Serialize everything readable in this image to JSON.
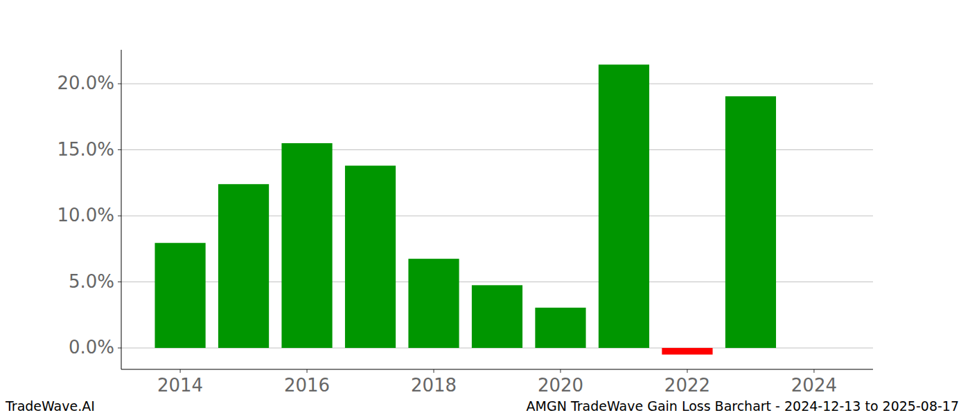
{
  "chart_data": {
    "type": "bar",
    "title": "AMGN TradeWave Gain Loss Barchart - 2024-12-13 to 2025-08-17",
    "annotations": [
      "TradeWave.AI"
    ],
    "x": [
      2014,
      2015,
      2016,
      2017,
      2018,
      2019,
      2020,
      2021,
      2022,
      2023
    ],
    "values": [
      7.95,
      12.4,
      15.5,
      13.8,
      6.75,
      4.75,
      3.05,
      21.45,
      -0.5,
      19.05
    ],
    "colors": [
      "#009600",
      "#009600",
      "#009600",
      "#009600",
      "#009600",
      "#009600",
      "#009600",
      "#009600",
      "#ff0000",
      "#009600"
    ],
    "xlim": [
      2013.07,
      2024.93
    ],
    "xticks": [
      2014,
      2016,
      2018,
      2020,
      2022,
      2024
    ],
    "ylim": [
      -1.62,
      22.57
    ],
    "yticks": [
      {
        "value": 0,
        "label": "0.0%"
      },
      {
        "value": 5,
        "label": "5.0%"
      },
      {
        "value": 10,
        "label": "10.0%"
      },
      {
        "value": 15,
        "label": "15.0%"
      },
      {
        "value": 20,
        "label": "20.0%"
      }
    ],
    "grid": true
  }
}
